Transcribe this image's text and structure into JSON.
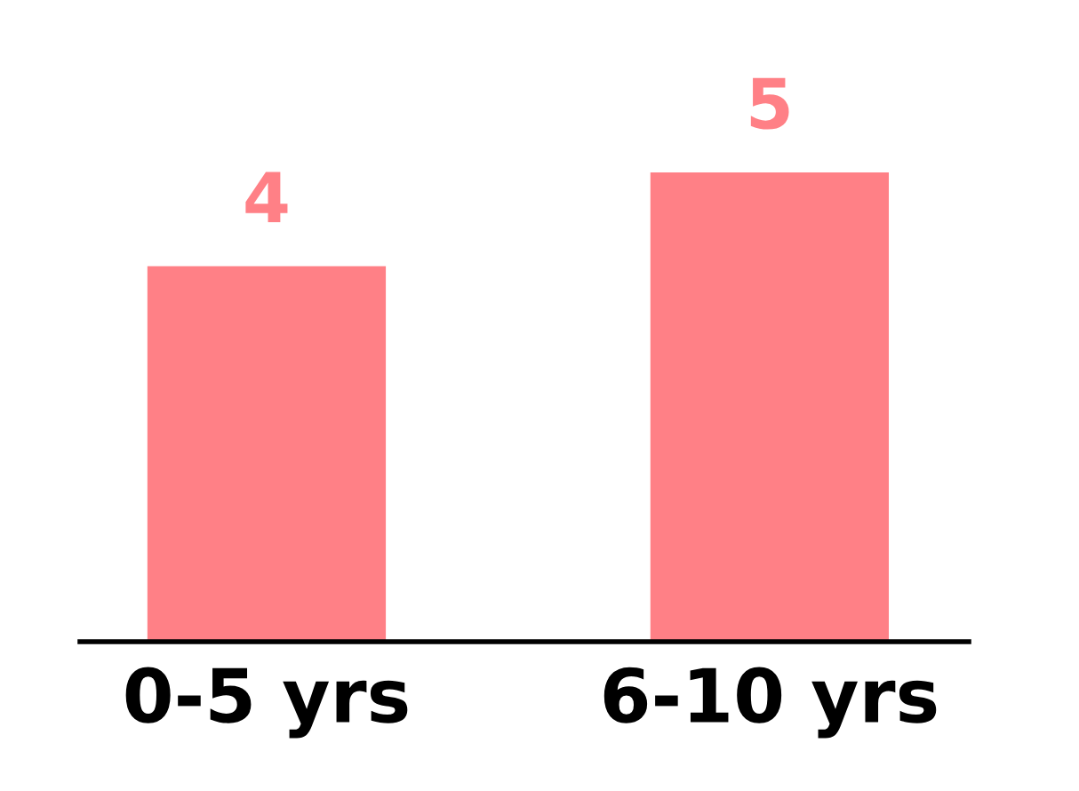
{
  "chart_data": {
    "type": "bar",
    "categories": [
      "0-5 yrs",
      "6-10 yrs"
    ],
    "values": [
      4,
      5
    ],
    "color": "#ff8086",
    "data_labels": true
  }
}
